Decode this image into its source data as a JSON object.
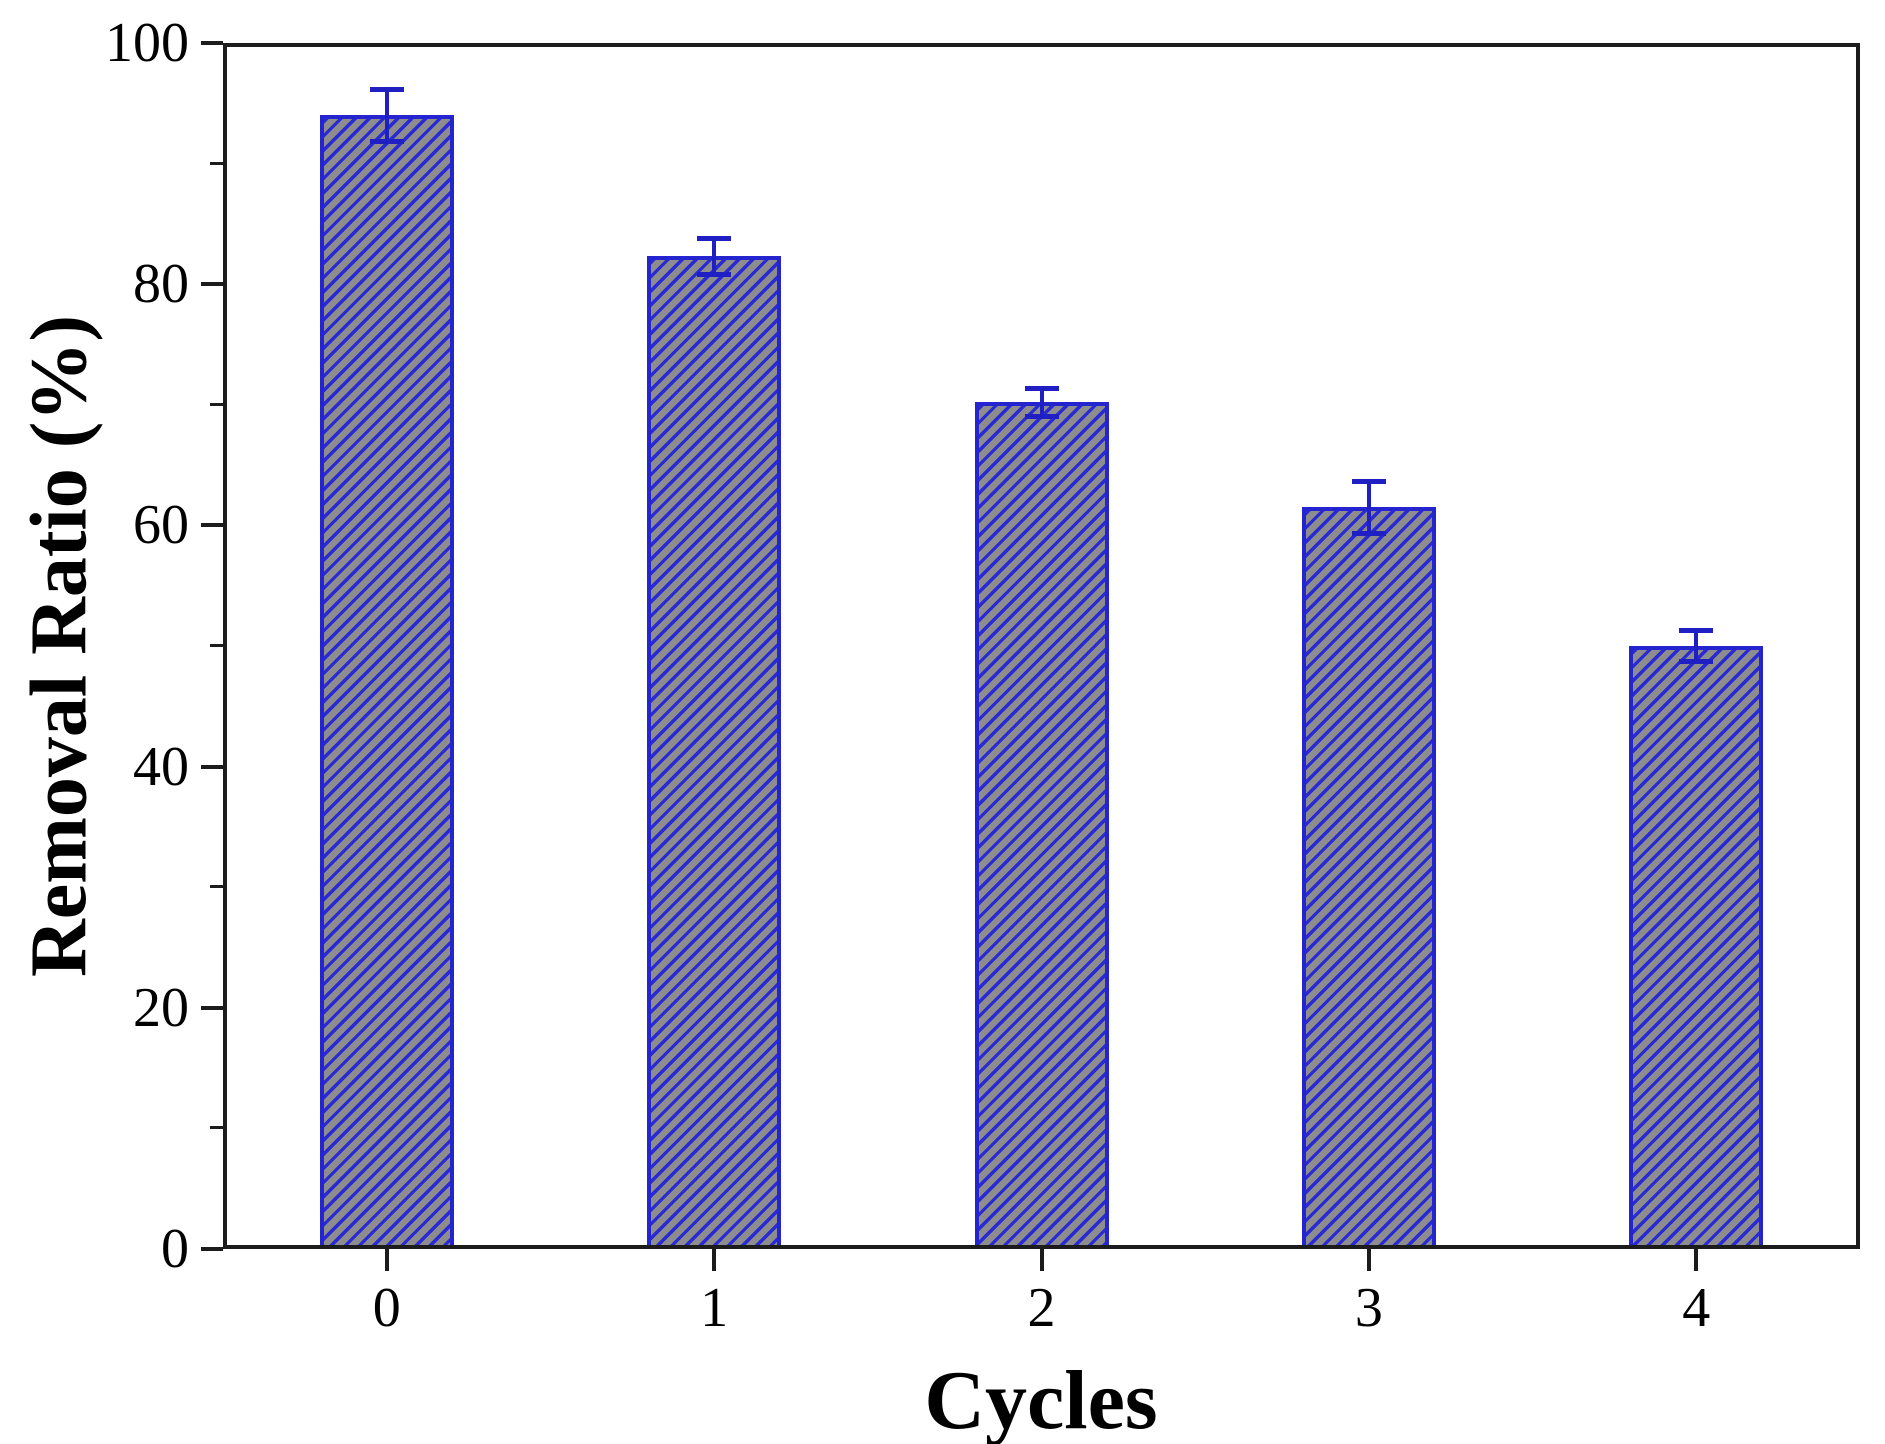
{
  "chart_data": {
    "type": "bar",
    "title": "",
    "xlabel": "Cycles",
    "ylabel": "Removal Ratio (%)",
    "categories": [
      "0",
      "1",
      "2",
      "3",
      "4"
    ],
    "values": [
      94.0,
      82.3,
      70.2,
      61.5,
      50.0
    ],
    "error_bars": [
      2.2,
      1.5,
      1.2,
      2.2,
      1.3
    ],
    "ylim": [
      0,
      100
    ],
    "yticks_major": [
      0,
      20,
      40,
      60,
      80,
      100
    ],
    "yticks_minor": [
      10,
      30,
      50,
      70,
      90
    ],
    "grid": false,
    "legend": false,
    "hatch": "/",
    "colors": {
      "bar_fill": "#8d8d8d",
      "bar_hatch": "#2a2ad4",
      "bar_edge": "#2525d0",
      "error_bar": "#1f1fc4",
      "axis": "#1c1c1c",
      "text": "#000000",
      "background": "#ffffff"
    }
  }
}
